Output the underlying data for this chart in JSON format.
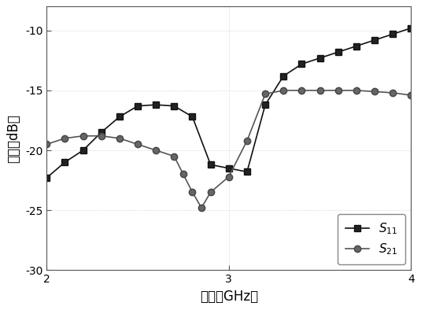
{
  "S11_x": [
    2.0,
    2.1,
    2.2,
    2.3,
    2.4,
    2.5,
    2.6,
    2.7,
    2.8,
    2.9,
    3.0,
    3.1,
    3.2,
    3.3,
    3.4,
    3.5,
    3.6,
    3.7,
    3.8,
    3.9,
    4.0
  ],
  "S11_y": [
    -22.3,
    -21.0,
    -20.0,
    -18.5,
    -17.2,
    -16.3,
    -16.2,
    -16.3,
    -17.2,
    -21.2,
    -21.5,
    -21.8,
    -16.2,
    -13.8,
    -12.8,
    -12.3,
    -11.8,
    -11.3,
    -10.8,
    -10.3,
    -9.8
  ],
  "S21_x": [
    2.0,
    2.1,
    2.2,
    2.3,
    2.4,
    2.5,
    2.6,
    2.7,
    2.75,
    2.8,
    2.85,
    2.9,
    3.0,
    3.1,
    3.2,
    3.3,
    3.4,
    3.5,
    3.6,
    3.7,
    3.8,
    3.9,
    4.0
  ],
  "S21_y": [
    -19.5,
    -19.0,
    -18.8,
    -18.8,
    -19.0,
    -19.5,
    -20.0,
    -20.5,
    -22.0,
    -23.5,
    -24.8,
    -23.5,
    -22.2,
    -19.2,
    -15.3,
    -15.0,
    -15.0,
    -15.0,
    -15.0,
    -15.0,
    -15.1,
    -15.2,
    -15.4
  ],
  "xlabel": "频率（GHz）",
  "ylabel": "幅度（dB）",
  "xlim": [
    2,
    4
  ],
  "ylim": [
    -30,
    -8
  ],
  "xticks": [
    2,
    3,
    4
  ],
  "yticks": [
    -30,
    -25,
    -20,
    -15,
    -10
  ],
  "S11_label": "$S_{11}$",
  "S21_label": "$S_{21}$",
  "S11_color": "#111111",
  "S21_color": "#555555",
  "bg_color": "#ffffff",
  "legend_loc": "lower right",
  "grid_color": "#cccccc",
  "grid_style": ":",
  "grid_lw": 0.6
}
